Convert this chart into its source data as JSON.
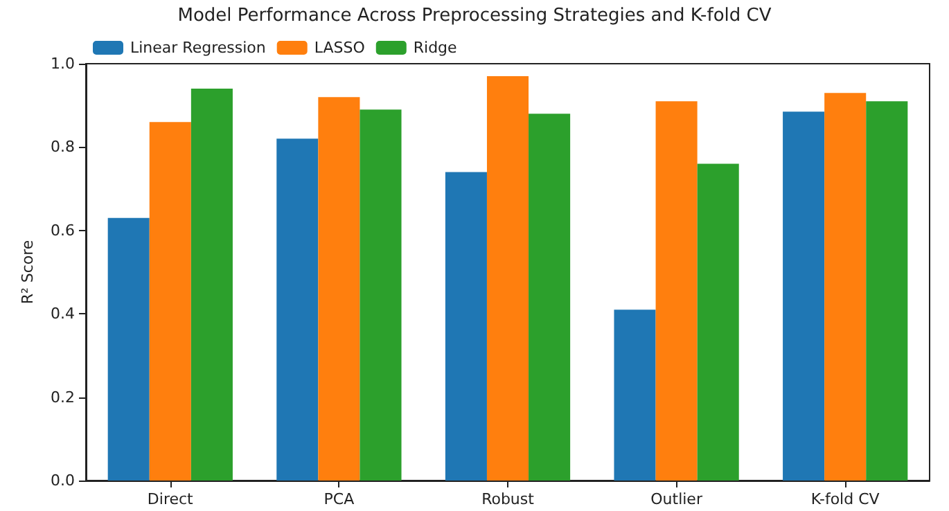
{
  "chart_data": {
    "type": "bar",
    "title": "Model Performance Across Preprocessing Strategies and K-fold CV",
    "ylabel": "R² Score",
    "categories": [
      "Direct",
      "PCA",
      "Robust",
      "Outlier",
      "K-fold CV"
    ],
    "series": [
      {
        "name": "Linear Regression",
        "color": "#1f77b4",
        "values": [
          0.63,
          0.82,
          0.74,
          0.41,
          0.885
        ]
      },
      {
        "name": "LASSO",
        "color": "#ff7f0e",
        "values": [
          0.86,
          0.92,
          0.97,
          0.91,
          0.93
        ]
      },
      {
        "name": "Ridge",
        "color": "#2ca02c",
        "values": [
          0.94,
          0.89,
          0.88,
          0.76,
          0.91
        ]
      }
    ],
    "ylim": [
      0,
      1
    ],
    "yticks": [
      {
        "value": 0,
        "label": "0.0"
      },
      {
        "value": 0.2,
        "label": "0.2"
      },
      {
        "value": 0.4,
        "label": "0.4"
      },
      {
        "value": 0.6,
        "label": "0.6"
      },
      {
        "value": 0.8,
        "label": "0.8"
      },
      {
        "value": 1,
        "label": "1.0"
      }
    ],
    "grid": false,
    "legend": "top left"
  }
}
